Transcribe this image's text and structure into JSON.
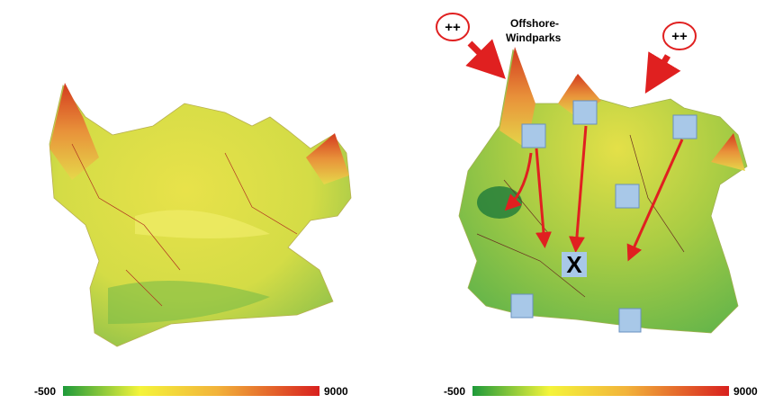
{
  "left_map": {
    "colorbar": {
      "min": -500,
      "max": 9000
    }
  },
  "right_map": {
    "colorbar": {
      "min": -500,
      "max": 9000
    },
    "markers": [
      "++",
      "++"
    ],
    "label_lines": [
      "Offshore-",
      "Windparks"
    ],
    "center_mark": "X"
  }
}
